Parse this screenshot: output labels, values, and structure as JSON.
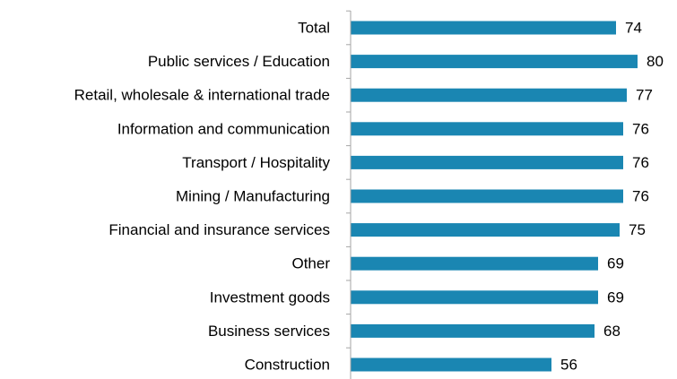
{
  "chart_data": {
    "type": "bar",
    "orientation": "horizontal",
    "title": "",
    "xlabel": "",
    "ylabel": "",
    "categories": [
      "Total",
      "Public services / Education",
      "Retail, wholesale & international trade",
      "Information and communication",
      "Transport / Hospitality",
      "Mining / Manufacturing",
      "Financial and insurance services",
      "Other",
      "Investment goods",
      "Business services",
      "Construction"
    ],
    "values": [
      74,
      80,
      77,
      76,
      76,
      76,
      75,
      69,
      69,
      68,
      56
    ],
    "xlim": [
      0,
      80
    ],
    "grid": false,
    "legend": "none",
    "colors": {
      "bar": "#1a86b2",
      "axis": "#a6a6a6"
    }
  }
}
